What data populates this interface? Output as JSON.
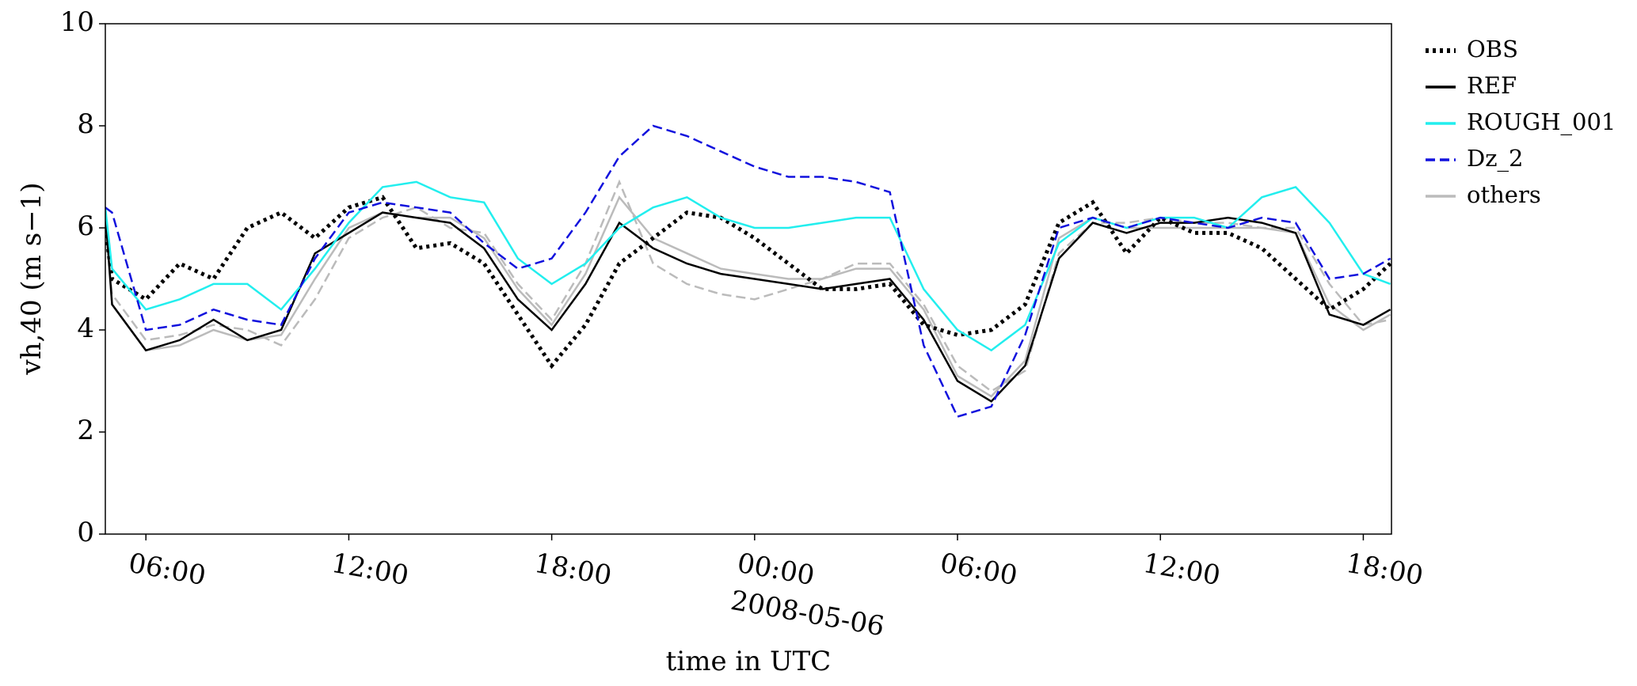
{
  "chart_data": {
    "type": "line",
    "ylabel": "vh,40 (m s−1)",
    "xlabel": "time in UTC",
    "xtick_date_label": "2008-05-06",
    "x": [
      "2008-05-05T04:48",
      "2008-05-05T05:00",
      "2008-05-05T06:00",
      "2008-05-05T07:00",
      "2008-05-05T08:00",
      "2008-05-05T09:00",
      "2008-05-05T10:00",
      "2008-05-05T11:00",
      "2008-05-05T12:00",
      "2008-05-05T13:00",
      "2008-05-05T14:00",
      "2008-05-05T15:00",
      "2008-05-05T16:00",
      "2008-05-05T17:00",
      "2008-05-05T18:00",
      "2008-05-05T19:00",
      "2008-05-05T20:00",
      "2008-05-05T21:00",
      "2008-05-05T22:00",
      "2008-05-05T23:00",
      "2008-05-06T00:00",
      "2008-05-06T01:00",
      "2008-05-06T02:00",
      "2008-05-06T03:00",
      "2008-05-06T04:00",
      "2008-05-06T05:00",
      "2008-05-06T06:00",
      "2008-05-06T07:00",
      "2008-05-06T08:00",
      "2008-05-06T09:00",
      "2008-05-06T10:00",
      "2008-05-06T11:00",
      "2008-05-06T12:00",
      "2008-05-06T13:00",
      "2008-05-06T14:00",
      "2008-05-06T15:00",
      "2008-05-06T16:00",
      "2008-05-06T17:00",
      "2008-05-06T18:00",
      "2008-05-06T18:48"
    ],
    "series": [
      {
        "name": "others",
        "color": "#bbbbbb",
        "dash": "solid",
        "values": [
          6.2,
          4.5,
          3.6,
          3.7,
          4.0,
          3.8,
          3.9,
          5.0,
          6.0,
          6.3,
          6.2,
          6.2,
          5.8,
          4.8,
          4.1,
          5.1,
          6.6,
          5.8,
          5.5,
          5.2,
          5.1,
          5.0,
          5.0,
          5.2,
          5.2,
          4.4,
          3.1,
          2.7,
          3.4,
          5.8,
          6.2,
          6.0,
          6.0,
          6.0,
          6.0,
          6.0,
          5.9,
          4.5,
          4.0,
          4.3
        ]
      },
      {
        "name": "others",
        "color": "#bbbbbb",
        "dash": "dashed",
        "values": [
          6.0,
          4.7,
          3.8,
          3.9,
          4.1,
          4.0,
          3.7,
          4.6,
          5.8,
          6.2,
          6.4,
          6.0,
          5.9,
          4.9,
          4.2,
          5.3,
          6.9,
          5.3,
          4.9,
          4.7,
          4.6,
          4.8,
          5.0,
          5.3,
          5.3,
          4.5,
          3.3,
          2.8,
          3.2,
          5.5,
          6.1,
          6.1,
          6.2,
          6.1,
          6.1,
          6.0,
          6.0,
          4.9,
          4.1,
          4.2
        ]
      },
      {
        "name": "OBS",
        "color": "#000000",
        "dash": "dotted",
        "values": [
          6.0,
          5.0,
          4.6,
          5.3,
          5.0,
          6.0,
          6.3,
          5.8,
          6.4,
          6.6,
          5.6,
          5.7,
          5.3,
          4.3,
          3.3,
          4.1,
          5.3,
          5.8,
          6.3,
          6.2,
          5.8,
          5.3,
          4.8,
          4.8,
          4.9,
          4.1,
          3.9,
          4.0,
          4.5,
          6.1,
          6.5,
          5.5,
          6.2,
          5.9,
          5.9,
          5.6,
          5.0,
          4.4,
          4.8,
          5.3
        ]
      },
      {
        "name": "REF",
        "color": "#000000",
        "dash": "solid",
        "values": [
          6.3,
          4.5,
          3.6,
          3.8,
          4.2,
          3.8,
          4.0,
          5.5,
          5.9,
          6.3,
          6.2,
          6.1,
          5.6,
          4.6,
          4.0,
          4.9,
          6.1,
          5.6,
          5.3,
          5.1,
          5.0,
          4.9,
          4.8,
          4.9,
          5.0,
          4.2,
          3.0,
          2.6,
          3.3,
          5.4,
          6.1,
          5.9,
          6.1,
          6.1,
          6.2,
          6.1,
          5.9,
          4.3,
          4.1,
          4.4
        ]
      },
      {
        "name": "ROUGH_001",
        "color": "#22eeee",
        "dash": "solid",
        "values": [
          6.4,
          5.2,
          4.4,
          4.6,
          4.9,
          4.9,
          4.4,
          5.2,
          6.1,
          6.8,
          6.9,
          6.6,
          6.5,
          5.4,
          4.9,
          5.3,
          6.0,
          6.4,
          6.6,
          6.2,
          6.0,
          6.0,
          6.1,
          6.2,
          6.2,
          4.8,
          4.0,
          3.6,
          4.1,
          5.7,
          6.2,
          6.0,
          6.2,
          6.2,
          6.0,
          6.6,
          6.8,
          6.1,
          5.1,
          4.9
        ]
      },
      {
        "name": "Dz_2",
        "color": "#1111dd",
        "dash": "dashed",
        "values": [
          6.4,
          6.3,
          4.0,
          4.1,
          4.4,
          4.2,
          4.1,
          5.4,
          6.3,
          6.5,
          6.4,
          6.3,
          5.7,
          5.2,
          5.4,
          6.3,
          7.4,
          8.0,
          7.8,
          7.5,
          7.2,
          7.0,
          7.0,
          6.9,
          6.7,
          3.7,
          2.3,
          2.5,
          3.9,
          6.0,
          6.2,
          6.0,
          6.2,
          6.1,
          6.0,
          6.2,
          6.1,
          5.0,
          5.1,
          5.4
        ]
      }
    ],
    "legend_order": [
      "OBS",
      "REF",
      "ROUGH_001",
      "Dz_2",
      "others"
    ],
    "xlim": [
      "2008-05-05T04:48",
      "2008-05-06T18:50"
    ],
    "xticks": [
      {
        "value": "2008-05-05T06:00",
        "label": "06:00"
      },
      {
        "value": "2008-05-05T12:00",
        "label": "12:00"
      },
      {
        "value": "2008-05-05T18:00",
        "label": "18:00"
      },
      {
        "value": "2008-05-06T00:00",
        "label": "00:00"
      },
      {
        "value": "2008-05-06T06:00",
        "label": "06:00"
      },
      {
        "value": "2008-05-06T12:00",
        "label": "12:00"
      },
      {
        "value": "2008-05-06T18:00",
        "label": "18:00"
      }
    ],
    "ylim": [
      0,
      10
    ],
    "yticks": [
      0,
      2,
      4,
      6,
      8,
      10
    ],
    "grid": false,
    "legend": "outside-right"
  }
}
